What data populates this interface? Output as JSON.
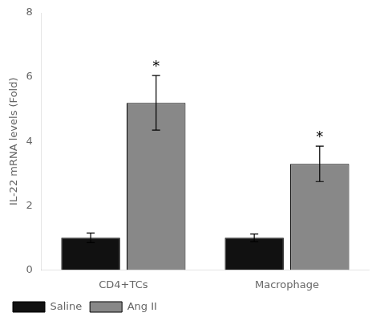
{
  "chart_data": {
    "type": "bar",
    "categories": [
      "CD4+TCs",
      "Macrophage"
    ],
    "series": [
      {
        "name": "Saline",
        "color": "#111111",
        "values": [
          1.0,
          1.0
        ],
        "errors": [
          0.15,
          0.12
        ]
      },
      {
        "name": "Ang II",
        "color": "#888888",
        "values": [
          5.2,
          3.3
        ],
        "errors": [
          0.85,
          0.55
        ]
      }
    ],
    "ylabel": "IL-22 mRNA levels (Fold)",
    "ylim": [
      0,
      8
    ],
    "yticks": [
      0,
      2,
      4,
      6,
      8
    ],
    "grid": false,
    "legend": "bottom",
    "annotations": [
      {
        "text": "*",
        "series": "Ang II",
        "category": "CD4+TCs"
      },
      {
        "text": "*",
        "series": "Ang II",
        "category": "Macrophage"
      }
    ]
  }
}
